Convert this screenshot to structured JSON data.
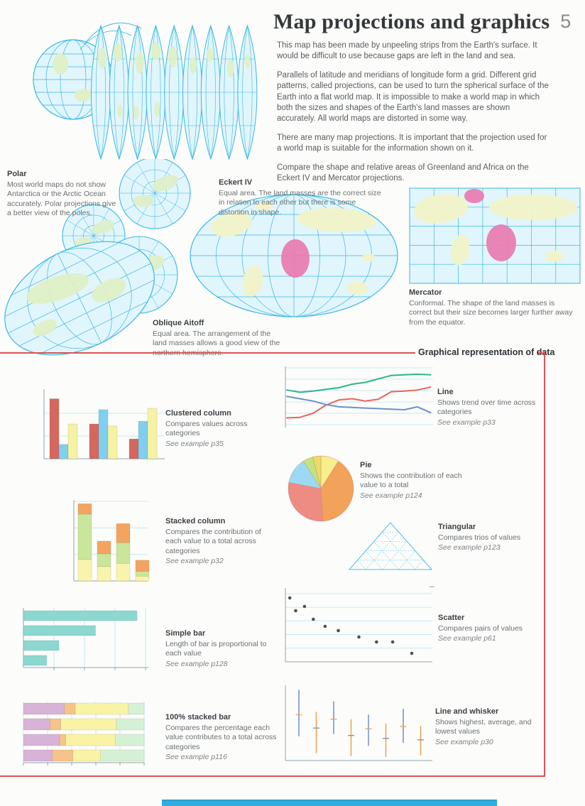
{
  "page": {
    "title": "Map projections and graphics",
    "page_number": "5",
    "intro_paragraphs": [
      "This map has been made by unpeeling strips from the Earth's surface. It would be difficult to use because gaps are left in the land and sea.",
      "Parallels of latitude and meridians of longitude form a grid. Different grid patterns, called projections, can be used to turn the spherical surface of the Earth into a flat world map. It is impossible to make a world map in which both the sizes and shapes of the Earth's land masses are shown accurately. All world maps are distorted in some way.",
      "There are many map projections. It is important that the projection used for a world map is suitable for the information shown on it.",
      "Compare the shape and relative areas of Greenland and Africa on the Eckert IV and Mercator projections."
    ]
  },
  "colors": {
    "accent_red": "#dc5356",
    "map_line_cyan": "#38b9e4",
    "map_sea": "#e1f5fc",
    "map_land_green": "#dff0c6",
    "map_land_yellow": "#f1f3c8",
    "map_highlight_pink": "#e87db2",
    "grid_cyan": "#c3ebf7",
    "axis_gray": "#90a4ae"
  },
  "maps": {
    "polar": {
      "title": "Polar",
      "text": "Most world maps do not show Antarctica or the Arctic Ocean accurately. Polar projections give a better view of the poles."
    },
    "eckert_iv": {
      "title": "Eckert IV",
      "text": "Equal area. The land masses are the correct size in relation to each other but there is some distortion in shape."
    },
    "mercator": {
      "title": "Mercator",
      "text": "Conformal. The shape of the land masses is correct but their size becomes larger further away from the equator."
    },
    "oblique_aitoff": {
      "title": "Oblique Aitoff",
      "text": "Equal area. The arrangement of the land masses allows a good view of the northern hemisphere."
    }
  },
  "graphics_section": {
    "header": "Graphical representation of data",
    "stray_mark": "–",
    "charts": {
      "clustered_column": {
        "title": "Clustered column",
        "text": "Compares values across categories",
        "example": "See example p35"
      },
      "line": {
        "title": "Line",
        "text": "Shows trend over time across categories",
        "example": "See example p33"
      },
      "pie": {
        "title": "Pie",
        "text": "Shows the contribution of each value to a total",
        "example": "See example p124"
      },
      "stacked_column": {
        "title": "Stacked column",
        "text": "Compares the contribution of each value to a total across categories",
        "example": "See example p32"
      },
      "triangular": {
        "title": "Triangular",
        "text": "Compares trios of values",
        "example": "See example p123"
      },
      "simple_bar": {
        "title": "Simple bar",
        "text": "Length of bar is proportional to each value",
        "example": "See example p128"
      },
      "scatter": {
        "title": "Scatter",
        "text": "Compares pairs of values",
        "example": "See example p61"
      },
      "pct_stacked_bar": {
        "title": "100% stacked bar",
        "text": "Compares the percentage each value contributes to a total across categories",
        "example": "See example p116"
      },
      "line_whisker": {
        "title": "Line and whisker",
        "text": "Shows highest, average, and lowest values",
        "example": "See example p30"
      }
    }
  },
  "chart_data": [
    {
      "id": "clustered_column",
      "type": "bar",
      "subtype": "clustered",
      "title": "Clustered column",
      "scale": "relative 0-100 (estimated, no axis labels shown)",
      "grid": "2 horizontal lines",
      "series": [
        {
          "name": "red",
          "color": "#d4685e",
          "values": [
            88,
            51,
            29
          ]
        },
        {
          "name": "blue",
          "color": "#7fd0f0",
          "values": [
            21,
            72,
            55
          ]
        },
        {
          "name": "yellow",
          "color": "#f6f2a4",
          "values": [
            51,
            48,
            74
          ]
        }
      ]
    },
    {
      "id": "line",
      "type": "line",
      "title": "Line",
      "scale": "relative 0-100 (estimated)",
      "grid": "horizontal lines",
      "series": [
        {
          "name": "green",
          "color": "#2db48b",
          "values": [
            62,
            58,
            60,
            63,
            66,
            72,
            75,
            81,
            87,
            88,
            89,
            88
          ]
        },
        {
          "name": "red",
          "color": "#e8655c",
          "values": [
            14,
            15,
            22,
            36,
            45,
            47,
            43,
            46,
            59,
            60,
            62,
            67
          ]
        },
        {
          "name": "blue",
          "color": "#6e8fcb",
          "values": [
            51,
            47,
            43,
            37,
            33,
            32,
            31,
            30,
            29,
            28,
            33,
            23
          ]
        }
      ]
    },
    {
      "id": "pie",
      "type": "pie",
      "title": "Pie",
      "scale": "percent of total (estimated)",
      "slices": [
        {
          "name": "yellow",
          "value": 9,
          "color": "#f8ef8c"
        },
        {
          "name": "orange",
          "value": 40,
          "color": "#f3a25a"
        },
        {
          "name": "salmon",
          "value": 29,
          "color": "#ee8b82"
        },
        {
          "name": "blue",
          "value": 13,
          "color": "#9cdaf3"
        },
        {
          "name": "green",
          "value": 5,
          "color": "#c3e381"
        },
        {
          "name": "gold",
          "value": 4,
          "color": "#ecdc67"
        }
      ]
    },
    {
      "id": "stacked_column",
      "type": "bar",
      "subtype": "stacked",
      "title": "Stacked column",
      "scale": "relative 0-100 (estimated)",
      "grid": "3 horizontal lines",
      "series": [
        {
          "name": "yellow",
          "color": "#f9f4ac",
          "values": [
            27,
            18,
            22,
            6
          ]
        },
        {
          "name": "green",
          "color": "#c9e69b",
          "values": [
            57,
            16,
            26,
            6
          ]
        },
        {
          "name": "orange",
          "color": "#f4a360",
          "values": [
            13,
            16,
            24,
            14
          ]
        }
      ]
    },
    {
      "id": "triangular",
      "type": "ternary",
      "title": "Triangular",
      "note": "dotted triangular grid only, no data points plotted"
    },
    {
      "id": "simple_bar",
      "type": "bar",
      "subtype": "horizontal",
      "title": "Simple bar",
      "scale": "relative 0-100 (estimated)",
      "grid": "4 vertical lines",
      "values": [
        93,
        59,
        29,
        19
      ],
      "color": "#8cd7cf"
    },
    {
      "id": "scatter",
      "type": "scatter",
      "title": "Scatter",
      "scale": "relative 0-100 both axes (estimated)",
      "grid": "5 horizontal lines",
      "point_color": "#4d5154",
      "points": [
        [
          3,
          90
        ],
        [
          7,
          72
        ],
        [
          13,
          78
        ],
        [
          19,
          60
        ],
        [
          27,
          50
        ],
        [
          36,
          44
        ],
        [
          50,
          35
        ],
        [
          62,
          28
        ],
        [
          73,
          28
        ],
        [
          86,
          12
        ]
      ]
    },
    {
      "id": "pct_stacked_bar",
      "type": "bar",
      "subtype": "100pct-stacked-horizontal",
      "title": "100% stacked bar",
      "scale": "percent of bar (estimated)",
      "grid": "vertical lines every 20%",
      "segment_colors": [
        "#d7b3d8",
        "#f6c38b",
        "#f9f3a5",
        "#d5f1d5"
      ],
      "bars": [
        [
          34,
          9,
          44,
          13
        ],
        [
          22,
          9,
          46,
          23
        ],
        [
          30,
          5,
          41,
          24
        ],
        [
          24,
          17,
          23,
          36
        ]
      ]
    },
    {
      "id": "line_whisker",
      "type": "whisker",
      "title": "Line and whisker",
      "scale": "relative 0-100 (estimated)",
      "items": [
        {
          "color": "#6e8fcb",
          "high": 96,
          "avg": 62,
          "low": 33
        },
        {
          "color": "#f0a050",
          "high": 66,
          "avg": 44,
          "low": 10
        },
        {
          "color": "#6e8fcb",
          "high": 80,
          "avg": 56,
          "low": 36
        },
        {
          "color": "#f0a050",
          "high": 56,
          "avg": 34,
          "low": 6
        },
        {
          "color": "#6e8fcb",
          "high": 62,
          "avg": 43,
          "low": 20
        },
        {
          "color": "#f0a050",
          "high": 50,
          "avg": 30,
          "low": 5
        },
        {
          "color": "#6e8fcb",
          "high": 70,
          "avg": 46,
          "low": 24
        },
        {
          "color": "#f0a050",
          "high": 47,
          "avg": 28,
          "low": 7
        }
      ]
    }
  ]
}
